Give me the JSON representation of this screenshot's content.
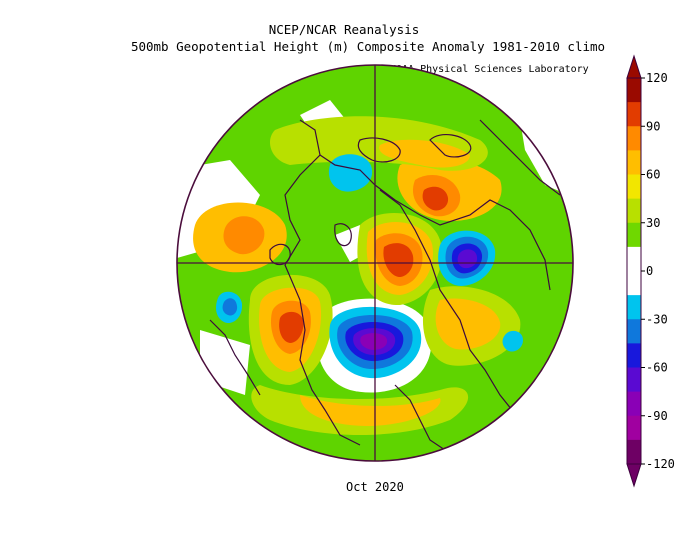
{
  "header": {
    "title": "NCEP/NCAR Reanalysis",
    "subtitle": "500mb Geopotential Height (m) Composite Anomaly 1981-2010 climo",
    "credit": "NOAA Physical Sciences Laboratory"
  },
  "footer": {
    "date": "Oct 2020"
  },
  "colorbar": {
    "labels": [
      "120",
      "90",
      "60",
      "30",
      "0",
      "-30",
      "-60",
      "-90",
      "-120"
    ],
    "colors": [
      "#9a0a00",
      "#e23c00",
      "#ff8a00",
      "#ffbe00",
      "#f2e600",
      "#b8e000",
      "#6fd800",
      "#ffffff",
      "#ffffff",
      "#00c4ee",
      "#0f78dc",
      "#1818dc",
      "#5a0ad2",
      "#8a00b6",
      "#a000a0",
      "#6e0064"
    ],
    "outline": "#3c003c"
  },
  "map": {
    "projection": "north-polar-stereographic",
    "background": "#5fd400",
    "border": "#4b0d3c"
  }
}
